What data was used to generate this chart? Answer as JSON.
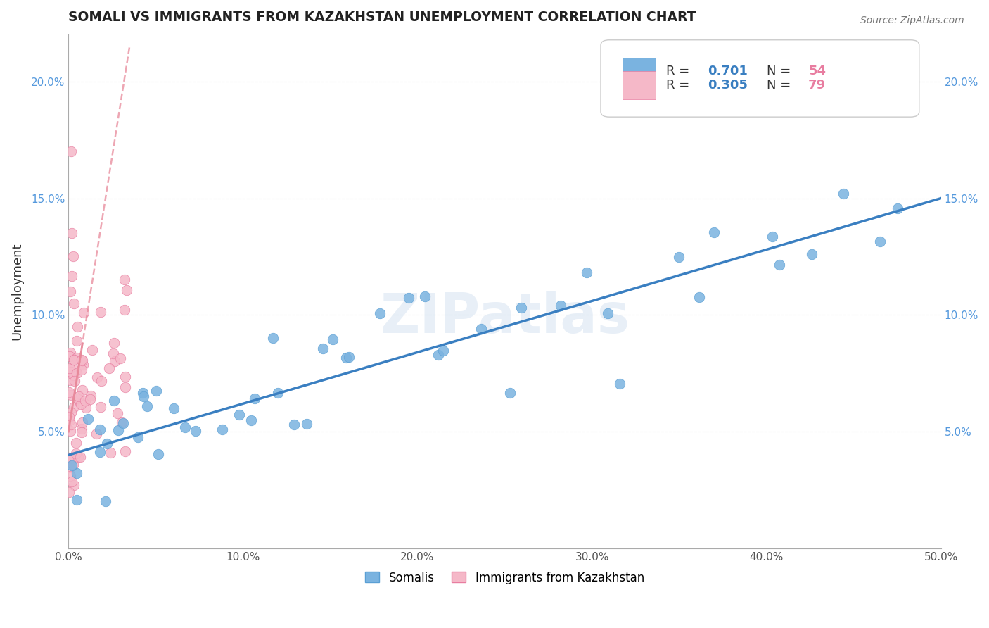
{
  "title": "SOMALI VS IMMIGRANTS FROM KAZAKHSTAN UNEMPLOYMENT CORRELATION CHART",
  "source": "Source: ZipAtlas.com",
  "ylabel": "Unemployment",
  "xlim": [
    0,
    50
  ],
  "ylim": [
    0,
    22
  ],
  "background_color": "#ffffff",
  "watermark": "ZIPatlas",
  "legend_R1": "0.701",
  "legend_N1": "54",
  "legend_R2": "0.305",
  "legend_N2": "79",
  "somali_color": "#7ab3e0",
  "somali_edge": "#5a9fd4",
  "kazakh_color": "#f5b8c8",
  "kazakh_edge": "#e87da0",
  "line_blue": "#3a7fc1",
  "line_pink": "#e8899a",
  "grid_color": "#cccccc"
}
